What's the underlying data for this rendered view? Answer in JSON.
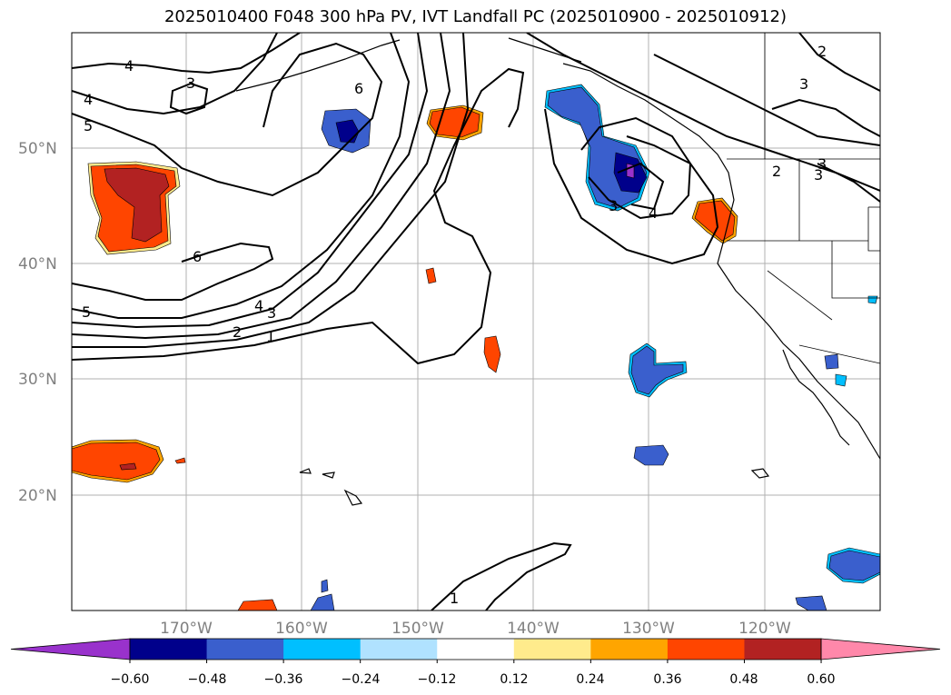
{
  "title": "2025010400 F048 300 hPa PV, IVT Landfall PC (2025010900 - 2025010912)",
  "lat_labels": [
    "50°N",
    "40°N",
    "30°N",
    "20°N"
  ],
  "lon_labels": [
    "170°W",
    "160°W",
    "150°W",
    "140°W",
    "130°W",
    "120°W"
  ],
  "contour_labels": [
    "4",
    "3",
    "6",
    "4",
    "5",
    "6",
    "5",
    "4",
    "3",
    "2",
    "1",
    "1",
    "2",
    "3",
    "2",
    "3",
    "3",
    "4",
    "3"
  ],
  "colorbar": {
    "ticks": [
      "−0.60",
      "−0.48",
      "−0.36",
      "−0.24",
      "−0.12",
      "0.12",
      "0.24",
      "0.36",
      "0.48",
      "0.60"
    ],
    "colors": [
      "#9932cc",
      "#00008b",
      "#3a5fcd",
      "#00bfff",
      "#b0e2ff",
      "#ffffff",
      "#ffeb8c",
      "#ffa500",
      "#ff4500",
      "#b22222",
      "#ff88aa"
    ]
  }
}
